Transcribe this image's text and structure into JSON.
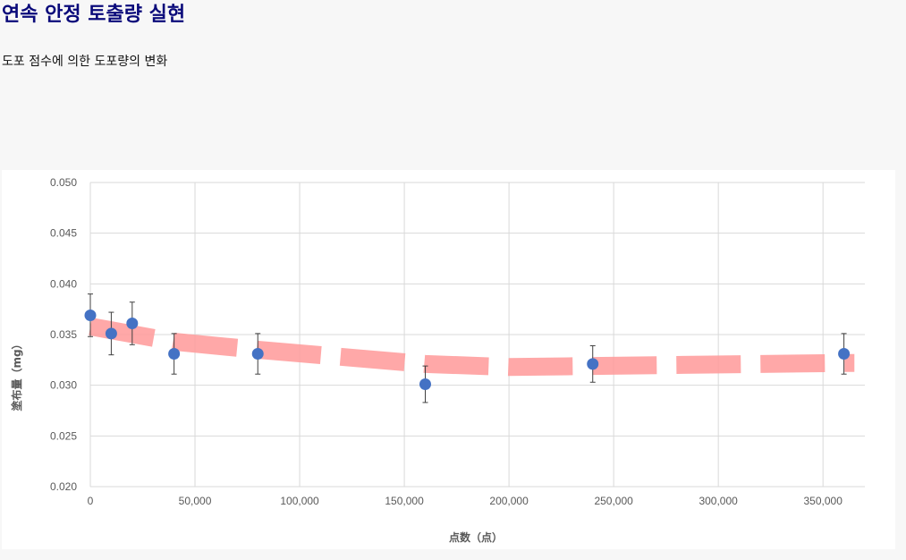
{
  "header": {
    "title": "연속 안정 토출량 실현",
    "subtitle": "도포 점수에 의한 도포량의 변화"
  },
  "colors": {
    "marker": "#4472c4",
    "band": "#ff9999",
    "grid": "#d9d9d9",
    "error_bar": "#404040"
  },
  "chart_data": {
    "type": "scatter",
    "xlabel": "点数（点）",
    "ylabel": "塗布量（mg）",
    "xlim": [
      0,
      370000
    ],
    "ylim": [
      0.02,
      0.05
    ],
    "x_ticks": [
      0,
      50000,
      100000,
      150000,
      200000,
      250000,
      300000,
      350000
    ],
    "x_tick_labels": [
      "0",
      "50,000",
      "100,000",
      "150,000",
      "200,000",
      "250,000",
      "300,000",
      "350,000"
    ],
    "y_ticks": [
      0.02,
      0.025,
      0.03,
      0.035,
      0.04,
      0.045,
      0.05
    ],
    "y_tick_labels": [
      "0.020",
      "0.025",
      "0.030",
      "0.035",
      "0.040",
      "0.045",
      "0.050"
    ],
    "grid": true,
    "series": [
      {
        "x": [
          0,
          10000,
          20000,
          40000,
          80000,
          160000,
          240000,
          360000
        ],
        "y": [
          0.0369,
          0.0351,
          0.0361,
          0.0331,
          0.0331,
          0.0301,
          0.0321,
          0.0331
        ],
        "error": [
          0.0021,
          0.0021,
          0.0021,
          0.002,
          0.002,
          0.0018,
          0.0018,
          0.002
        ]
      }
    ],
    "trend_band": {
      "style": "dashed",
      "x": [
        0,
        40000,
        80000,
        120000,
        160000,
        200000,
        240000,
        280000,
        320000,
        360000,
        365000
      ],
      "y": [
        0.0358,
        0.0343,
        0.0335,
        0.0328,
        0.0321,
        0.0318,
        0.0319,
        0.032,
        0.0321,
        0.0322,
        0.0322
      ]
    }
  }
}
